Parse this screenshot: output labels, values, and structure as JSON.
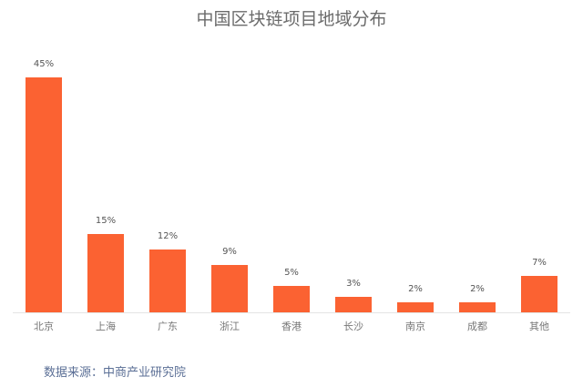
{
  "chart_data": {
    "type": "bar",
    "title": "中国区块链项目地域分布",
    "categories": [
      "北京",
      "上海",
      "广东",
      "浙江",
      "香港",
      "长沙",
      "南京",
      "成都",
      "其他"
    ],
    "values": [
      45,
      15,
      12,
      9,
      5,
      3,
      2,
      2,
      7
    ],
    "value_labels": [
      "45%",
      "15%",
      "12%",
      "9%",
      "5%",
      "3%",
      "2%",
      "2%",
      "7%"
    ],
    "xlabel": "",
    "ylabel": "",
    "ylim": [
      0,
      45
    ],
    "grid": false,
    "legend": null,
    "bar_color": "#fb6232"
  },
  "source": "数据来源：中商产业研究院"
}
